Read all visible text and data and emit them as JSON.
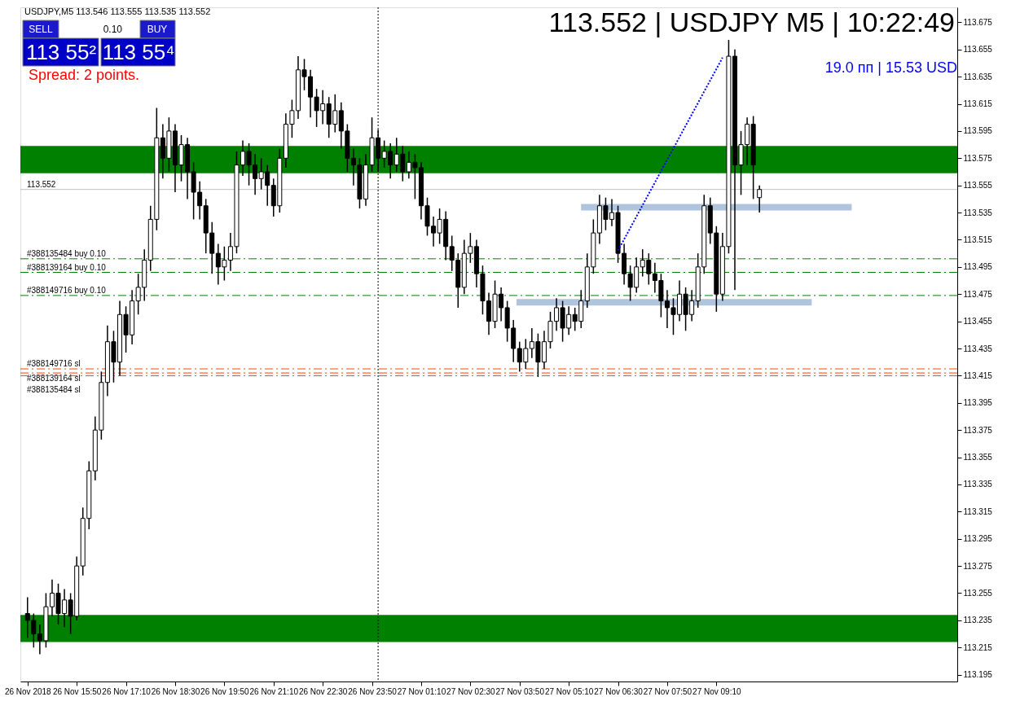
{
  "chart_data": {
    "type": "candlestick",
    "title": "113.552 | USDJPY M5 | 10:22:49",
    "x": [
      "2018-11-26T14:30",
      "2018-11-26T14:40",
      "2018-11-26T14:50",
      "2018-11-26T15:00",
      "2018-11-26T15:10",
      "2018-11-26T15:20",
      "2018-11-26T15:30",
      "2018-11-26T15:40",
      "2018-11-26T15:50",
      "2018-11-26T16:00",
      "2018-11-26T16:10",
      "2018-11-26T16:20",
      "2018-11-26T16:30",
      "2018-11-26T16:40",
      "2018-11-26T16:50",
      "2018-11-26T17:00",
      "2018-11-26T17:10",
      "2018-11-26T17:20",
      "2018-11-26T17:30",
      "2018-11-26T17:40",
      "2018-11-26T17:50",
      "2018-11-26T18:00",
      "2018-11-26T18:10",
      "2018-11-26T18:20",
      "2018-11-26T18:30",
      "2018-11-26T18:40",
      "2018-11-26T18:50",
      "2018-11-26T19:00",
      "2018-11-26T19:10",
      "2018-11-26T19:20",
      "2018-11-26T19:30",
      "2018-11-26T19:40",
      "2018-11-26T19:50",
      "2018-11-26T20:00",
      "2018-11-26T20:10",
      "2018-11-26T20:20",
      "2018-11-26T20:30",
      "2018-11-26T20:40",
      "2018-11-26T20:50",
      "2018-11-26T21:00",
      "2018-11-26T21:10",
      "2018-11-26T21:20",
      "2018-11-26T21:30",
      "2018-11-26T21:40",
      "2018-11-26T21:50",
      "2018-11-26T22:00",
      "2018-11-26T22:10",
      "2018-11-26T22:20",
      "2018-11-26T22:30",
      "2018-11-26T22:40",
      "2018-11-26T22:50",
      "2018-11-26T23:00",
      "2018-11-26T23:10",
      "2018-11-26T23:20",
      "2018-11-26T23:30",
      "2018-11-26T23:40",
      "2018-11-26T23:50",
      "2018-11-27T00:00",
      "2018-11-27T00:10",
      "2018-11-27T00:20",
      "2018-11-27T00:30",
      "2018-11-27T00:40",
      "2018-11-27T00:50",
      "2018-11-27T01:00",
      "2018-11-27T01:10",
      "2018-11-27T01:20",
      "2018-11-27T01:30",
      "2018-11-27T01:40",
      "2018-11-27T01:50",
      "2018-11-27T02:00",
      "2018-11-27T02:10",
      "2018-11-27T02:20",
      "2018-11-27T02:30",
      "2018-11-27T02:40",
      "2018-11-27T02:50",
      "2018-11-27T03:00",
      "2018-11-27T03:10",
      "2018-11-27T03:20",
      "2018-11-27T03:30",
      "2018-11-27T03:40",
      "2018-11-27T03:50",
      "2018-11-27T04:00",
      "2018-11-27T04:10",
      "2018-11-27T04:20",
      "2018-11-27T04:30",
      "2018-11-27T04:40",
      "2018-11-27T04:50",
      "2018-11-27T05:00",
      "2018-11-27T05:10",
      "2018-11-27T05:20",
      "2018-11-27T05:30",
      "2018-11-27T05:40",
      "2018-11-27T05:50",
      "2018-11-27T06:00",
      "2018-11-27T06:10",
      "2018-11-27T06:20",
      "2018-11-27T06:30",
      "2018-11-27T06:40",
      "2018-11-27T06:50",
      "2018-11-27T07:00",
      "2018-11-27T07:10",
      "2018-11-27T07:20",
      "2018-11-27T07:30",
      "2018-11-27T07:40",
      "2018-11-27T07:50",
      "2018-11-27T08:00",
      "2018-11-27T08:10",
      "2018-11-27T08:20",
      "2018-11-27T08:30",
      "2018-11-27T08:40",
      "2018-11-27T08:50",
      "2018-11-27T09:00",
      "2018-11-27T09:10",
      "2018-11-27T09:20",
      "2018-11-27T09:30",
      "2018-11-27T09:40",
      "2018-11-27T09:50",
      "2018-11-27T10:00",
      "2018-11-27T10:10",
      "2018-11-27T10:20"
    ],
    "ohlc": [
      [
        113.24,
        113.252,
        113.222,
        113.235
      ],
      [
        113.235,
        113.24,
        113.215,
        113.225
      ],
      [
        113.225,
        113.232,
        113.21,
        113.22
      ],
      [
        113.22,
        113.255,
        113.215,
        113.245
      ],
      [
        113.245,
        113.265,
        113.238,
        113.255
      ],
      [
        113.255,
        113.262,
        113.232,
        113.24
      ],
      [
        113.24,
        113.258,
        113.23,
        113.25
      ],
      [
        113.25,
        113.255,
        113.225,
        113.238
      ],
      [
        113.238,
        113.282,
        113.235,
        113.275
      ],
      [
        113.275,
        113.318,
        113.268,
        113.31
      ],
      [
        113.31,
        113.352,
        113.302,
        113.345
      ],
      [
        113.345,
        113.385,
        113.338,
        113.375
      ],
      [
        113.375,
        113.418,
        113.368,
        113.41
      ],
      [
        113.41,
        113.452,
        113.4,
        113.44
      ],
      [
        113.44,
        113.448,
        113.41,
        113.425
      ],
      [
        113.425,
        113.47,
        113.415,
        113.46
      ],
      [
        113.46,
        113.466,
        113.432,
        113.445
      ],
      [
        113.445,
        113.478,
        113.438,
        113.47
      ],
      [
        113.47,
        113.49,
        113.46,
        113.48
      ],
      [
        113.48,
        113.508,
        113.47,
        113.5
      ],
      [
        113.5,
        113.54,
        113.492,
        113.53
      ],
      [
        113.53,
        113.612,
        113.522,
        113.59
      ],
      [
        113.59,
        113.6,
        113.56,
        113.575
      ],
      [
        113.575,
        113.605,
        113.565,
        113.595
      ],
      [
        113.595,
        113.6,
        113.55,
        113.57
      ],
      [
        113.57,
        113.592,
        113.558,
        113.585
      ],
      [
        113.585,
        113.59,
        113.545,
        113.565
      ],
      [
        113.565,
        113.572,
        113.53,
        113.55
      ],
      [
        113.55,
        113.558,
        113.53,
        113.54
      ],
      [
        113.54,
        113.545,
        113.505,
        113.52
      ],
      [
        113.52,
        113.528,
        113.49,
        113.505
      ],
      [
        113.505,
        113.512,
        113.482,
        113.495
      ],
      [
        113.495,
        113.51,
        113.485,
        113.5
      ],
      [
        113.5,
        113.52,
        113.492,
        113.51
      ],
      [
        113.51,
        113.58,
        113.505,
        113.57
      ],
      [
        113.57,
        113.588,
        113.562,
        113.58
      ],
      [
        113.58,
        113.586,
        113.555,
        113.57
      ],
      [
        113.57,
        113.578,
        113.548,
        113.56
      ],
      [
        113.56,
        113.575,
        113.552,
        113.565
      ],
      [
        113.565,
        113.57,
        113.54,
        113.555
      ],
      [
        113.555,
        113.56,
        113.532,
        113.54
      ],
      [
        113.54,
        113.582,
        113.535,
        113.575
      ],
      [
        113.575,
        113.608,
        113.568,
        113.6
      ],
      [
        113.6,
        113.618,
        113.59,
        113.61
      ],
      [
        113.61,
        113.65,
        113.604,
        113.64
      ],
      [
        113.64,
        113.648,
        113.625,
        113.635
      ],
      [
        113.635,
        113.64,
        113.605,
        113.62
      ],
      [
        113.62,
        113.626,
        113.598,
        113.61
      ],
      [
        113.61,
        113.625,
        113.6,
        113.615
      ],
      [
        113.615,
        113.62,
        113.59,
        113.6
      ],
      [
        113.6,
        113.622,
        113.594,
        113.61
      ],
      [
        113.61,
        113.616,
        113.582,
        113.595
      ],
      [
        113.595,
        113.6,
        113.565,
        113.575
      ],
      [
        113.575,
        113.582,
        113.555,
        113.57
      ],
      [
        113.57,
        113.575,
        113.538,
        113.545
      ],
      [
        113.545,
        113.578,
        113.54,
        113.57
      ],
      [
        113.57,
        113.605,
        113.565,
        113.59
      ],
      [
        113.59,
        113.596,
        113.565,
        113.575
      ],
      [
        113.575,
        113.588,
        113.568,
        113.58
      ],
      [
        113.58,
        113.586,
        113.56,
        113.57
      ],
      [
        113.57,
        113.59,
        113.565,
        113.578
      ],
      [
        113.578,
        113.584,
        113.558,
        113.565
      ],
      [
        113.565,
        113.58,
        113.56,
        113.572
      ],
      [
        113.572,
        113.578,
        113.545,
        113.568
      ],
      [
        113.568,
        113.572,
        113.53,
        113.54
      ],
      [
        113.54,
        113.546,
        113.518,
        113.525
      ],
      [
        113.525,
        113.532,
        113.51,
        113.52
      ],
      [
        113.52,
        113.538,
        113.512,
        113.53
      ],
      [
        113.53,
        113.536,
        113.5,
        113.51
      ],
      [
        113.51,
        113.518,
        113.492,
        113.5
      ],
      [
        113.5,
        113.505,
        113.465,
        113.48
      ],
      [
        113.48,
        113.515,
        113.475,
        113.505
      ],
      [
        113.505,
        113.52,
        113.498,
        113.51
      ],
      [
        113.51,
        113.515,
        113.48,
        113.49
      ],
      [
        113.49,
        113.496,
        113.46,
        113.47
      ],
      [
        113.47,
        113.476,
        113.445,
        113.455
      ],
      [
        113.455,
        113.485,
        113.45,
        113.475
      ],
      [
        113.475,
        113.48,
        113.455,
        113.465
      ],
      [
        113.465,
        113.47,
        113.44,
        113.45
      ],
      [
        113.45,
        113.456,
        113.425,
        113.435
      ],
      [
        113.435,
        113.44,
        113.418,
        113.425
      ],
      [
        113.425,
        113.442,
        113.42,
        113.435
      ],
      [
        113.435,
        113.45,
        113.428,
        113.44
      ],
      [
        113.44,
        113.446,
        113.414,
        113.425
      ],
      [
        113.425,
        113.448,
        113.42,
        113.44
      ],
      [
        113.44,
        113.462,
        113.435,
        113.455
      ],
      [
        113.455,
        113.472,
        113.448,
        113.465
      ],
      [
        113.465,
        113.47,
        113.44,
        113.45
      ],
      [
        113.45,
        113.466,
        113.445,
        113.46
      ],
      [
        113.46,
        113.465,
        113.448,
        113.455
      ],
      [
        113.455,
        113.478,
        113.45,
        113.47
      ],
      [
        113.47,
        113.505,
        113.465,
        113.495
      ],
      [
        113.495,
        113.53,
        113.49,
        113.52
      ],
      [
        113.52,
        113.548,
        113.512,
        113.54
      ],
      [
        113.54,
        113.546,
        113.522,
        113.53
      ],
      [
        113.53,
        113.545,
        113.525,
        113.535
      ],
      [
        113.535,
        113.54,
        113.498,
        113.505
      ],
      [
        113.505,
        113.512,
        113.482,
        113.49
      ],
      [
        113.49,
        113.496,
        113.47,
        113.48
      ],
      [
        113.48,
        113.502,
        113.476,
        113.495
      ],
      [
        113.495,
        113.508,
        113.488,
        113.5
      ],
      [
        113.5,
        113.505,
        113.482,
        113.49
      ],
      [
        113.49,
        113.498,
        113.476,
        113.485
      ],
      [
        113.485,
        113.49,
        113.458,
        113.47
      ],
      [
        113.47,
        113.478,
        113.45,
        113.465
      ],
      [
        113.465,
        113.472,
        113.445,
        113.46
      ],
      [
        113.46,
        113.485,
        113.455,
        113.475
      ],
      [
        113.475,
        113.48,
        113.448,
        113.46
      ],
      [
        113.46,
        113.478,
        113.455,
        113.47
      ],
      [
        113.47,
        113.505,
        113.465,
        113.495
      ],
      [
        113.495,
        113.548,
        113.49,
        113.54
      ],
      [
        113.54,
        113.546,
        113.512,
        113.52
      ],
      [
        113.52,
        113.525,
        113.462,
        113.475
      ],
      [
        113.475,
        113.52,
        113.47,
        113.51
      ],
      [
        113.51,
        113.662,
        113.505,
        113.65
      ],
      [
        113.65,
        113.655,
        113.478,
        113.57
      ],
      [
        113.57,
        113.595,
        113.548,
        113.585
      ],
      [
        113.585,
        113.605,
        113.57,
        113.6
      ],
      [
        113.6,
        113.606,
        113.545,
        113.57
      ],
      [
        113.546,
        113.555,
        113.535,
        113.552
      ]
    ],
    "series": [
      {
        "type": "line",
        "color": "#b0c4de",
        "x": [
          "2018-11-27T05:30",
          "2018-11-27T12:50"
        ],
        "values": [
          113.539,
          113.539
        ]
      },
      {
        "type": "line",
        "color": "#b0c4de",
        "x": [
          "2018-11-27T03:45",
          "2018-11-27T11:45"
        ],
        "values": [
          113.469,
          113.469
        ]
      },
      {
        "type": "line",
        "color": "#0000ff",
        "line_style": "dotted",
        "x": [
          "2018-11-27T06:30",
          "2018-11-27T09:20"
        ],
        "values": [
          113.507,
          113.649
        ]
      }
    ],
    "bands": [
      {
        "axis": "y",
        "from": 113.564,
        "to": 113.584,
        "color": "#008000"
      },
      {
        "axis": "y",
        "from": 113.219,
        "to": 113.239,
        "color": "#008000"
      }
    ],
    "ref_lines": [
      {
        "axis": "y",
        "value": 113.552,
        "label": "113.552",
        "color": "#c0c0c0",
        "line_style": "solid"
      },
      {
        "axis": "y",
        "value": 113.501,
        "label": "#388135484 buy 0.10",
        "color": "#008000",
        "line_style": "dashed"
      },
      {
        "axis": "y",
        "value": 113.491,
        "label": "#388139164 buy 0.10",
        "color": "#008000",
        "line_style": "dashed"
      },
      {
        "axis": "y",
        "value": 113.474,
        "label": "#388149716 buy 0.10",
        "color": "#008000",
        "line_style": "dashed"
      },
      {
        "axis": "y",
        "value": 113.42,
        "label": "#388149716 sl",
        "color": "#ff4500",
        "line_style": "dashed"
      },
      {
        "axis": "y",
        "value": 113.417,
        "label": "#388139164 sl",
        "color": "#ff4500",
        "line_style": "dashed"
      },
      {
        "axis": "y",
        "value": 113.415,
        "label": "#388135484 sl",
        "color": "#ff4500",
        "line_style": "dashed"
      },
      {
        "axis": "x",
        "value": "2018-11-27T00:00",
        "color": "#000000",
        "line_style": "dotted"
      }
    ],
    "annotations": [
      "USDJPY,M5  113.546 113.555 113.535 113.552",
      "SELL",
      "0.10",
      "BUY",
      "113 55²",
      "113 55⁴",
      "Spread: 2 points.",
      "19.0 пп | 15.53 USD"
    ],
    "xlim": [
      "2018-11-26T14:25",
      "2018-11-27T15:35"
    ],
    "ylim": [
      113.19,
      113.686
    ],
    "xticks": [
      {
        "value": "2018-11-26T14:30",
        "label": "26 Nov 2018"
      },
      {
        "value": "2018-11-26T15:50",
        "label": "26 Nov 15:50"
      },
      {
        "value": "2018-11-26T17:10",
        "label": "26 Nov 17:10"
      },
      {
        "value": "2018-11-26T18:30",
        "label": "26 Nov 18:30"
      },
      {
        "value": "2018-11-26T19:50",
        "label": "26 Nov 19:50"
      },
      {
        "value": "2018-11-26T21:10",
        "label": "26 Nov 21:10"
      },
      {
        "value": "2018-11-26T22:30",
        "label": "26 Nov 22:30"
      },
      {
        "value": "2018-11-26T23:50",
        "label": "26 Nov 23:50"
      },
      {
        "value": "2018-11-27T01:10",
        "label": "27 Nov 01:10"
      },
      {
        "value": "2018-11-27T02:30",
        "label": "27 Nov 02:30"
      },
      {
        "value": "2018-11-27T03:50",
        "label": "27 Nov 03:50"
      },
      {
        "value": "2018-11-27T05:10",
        "label": "27 Nov 05:10"
      },
      {
        "value": "2018-11-27T06:30",
        "label": "27 Nov 06:30"
      },
      {
        "value": "2018-11-27T07:50",
        "label": "27 Nov 07:50"
      },
      {
        "value": "2018-11-27T09:10",
        "label": "27 Nov 09:10"
      }
    ],
    "yticks": [
      113.195,
      113.215,
      113.235,
      113.255,
      113.275,
      113.295,
      113.315,
      113.335,
      113.355,
      113.375,
      113.395,
      113.415,
      113.435,
      113.455,
      113.475,
      113.495,
      113.515,
      113.535,
      113.555,
      113.575,
      113.595,
      113.615,
      113.635,
      113.655,
      113.675
    ],
    "grid": false
  }
}
